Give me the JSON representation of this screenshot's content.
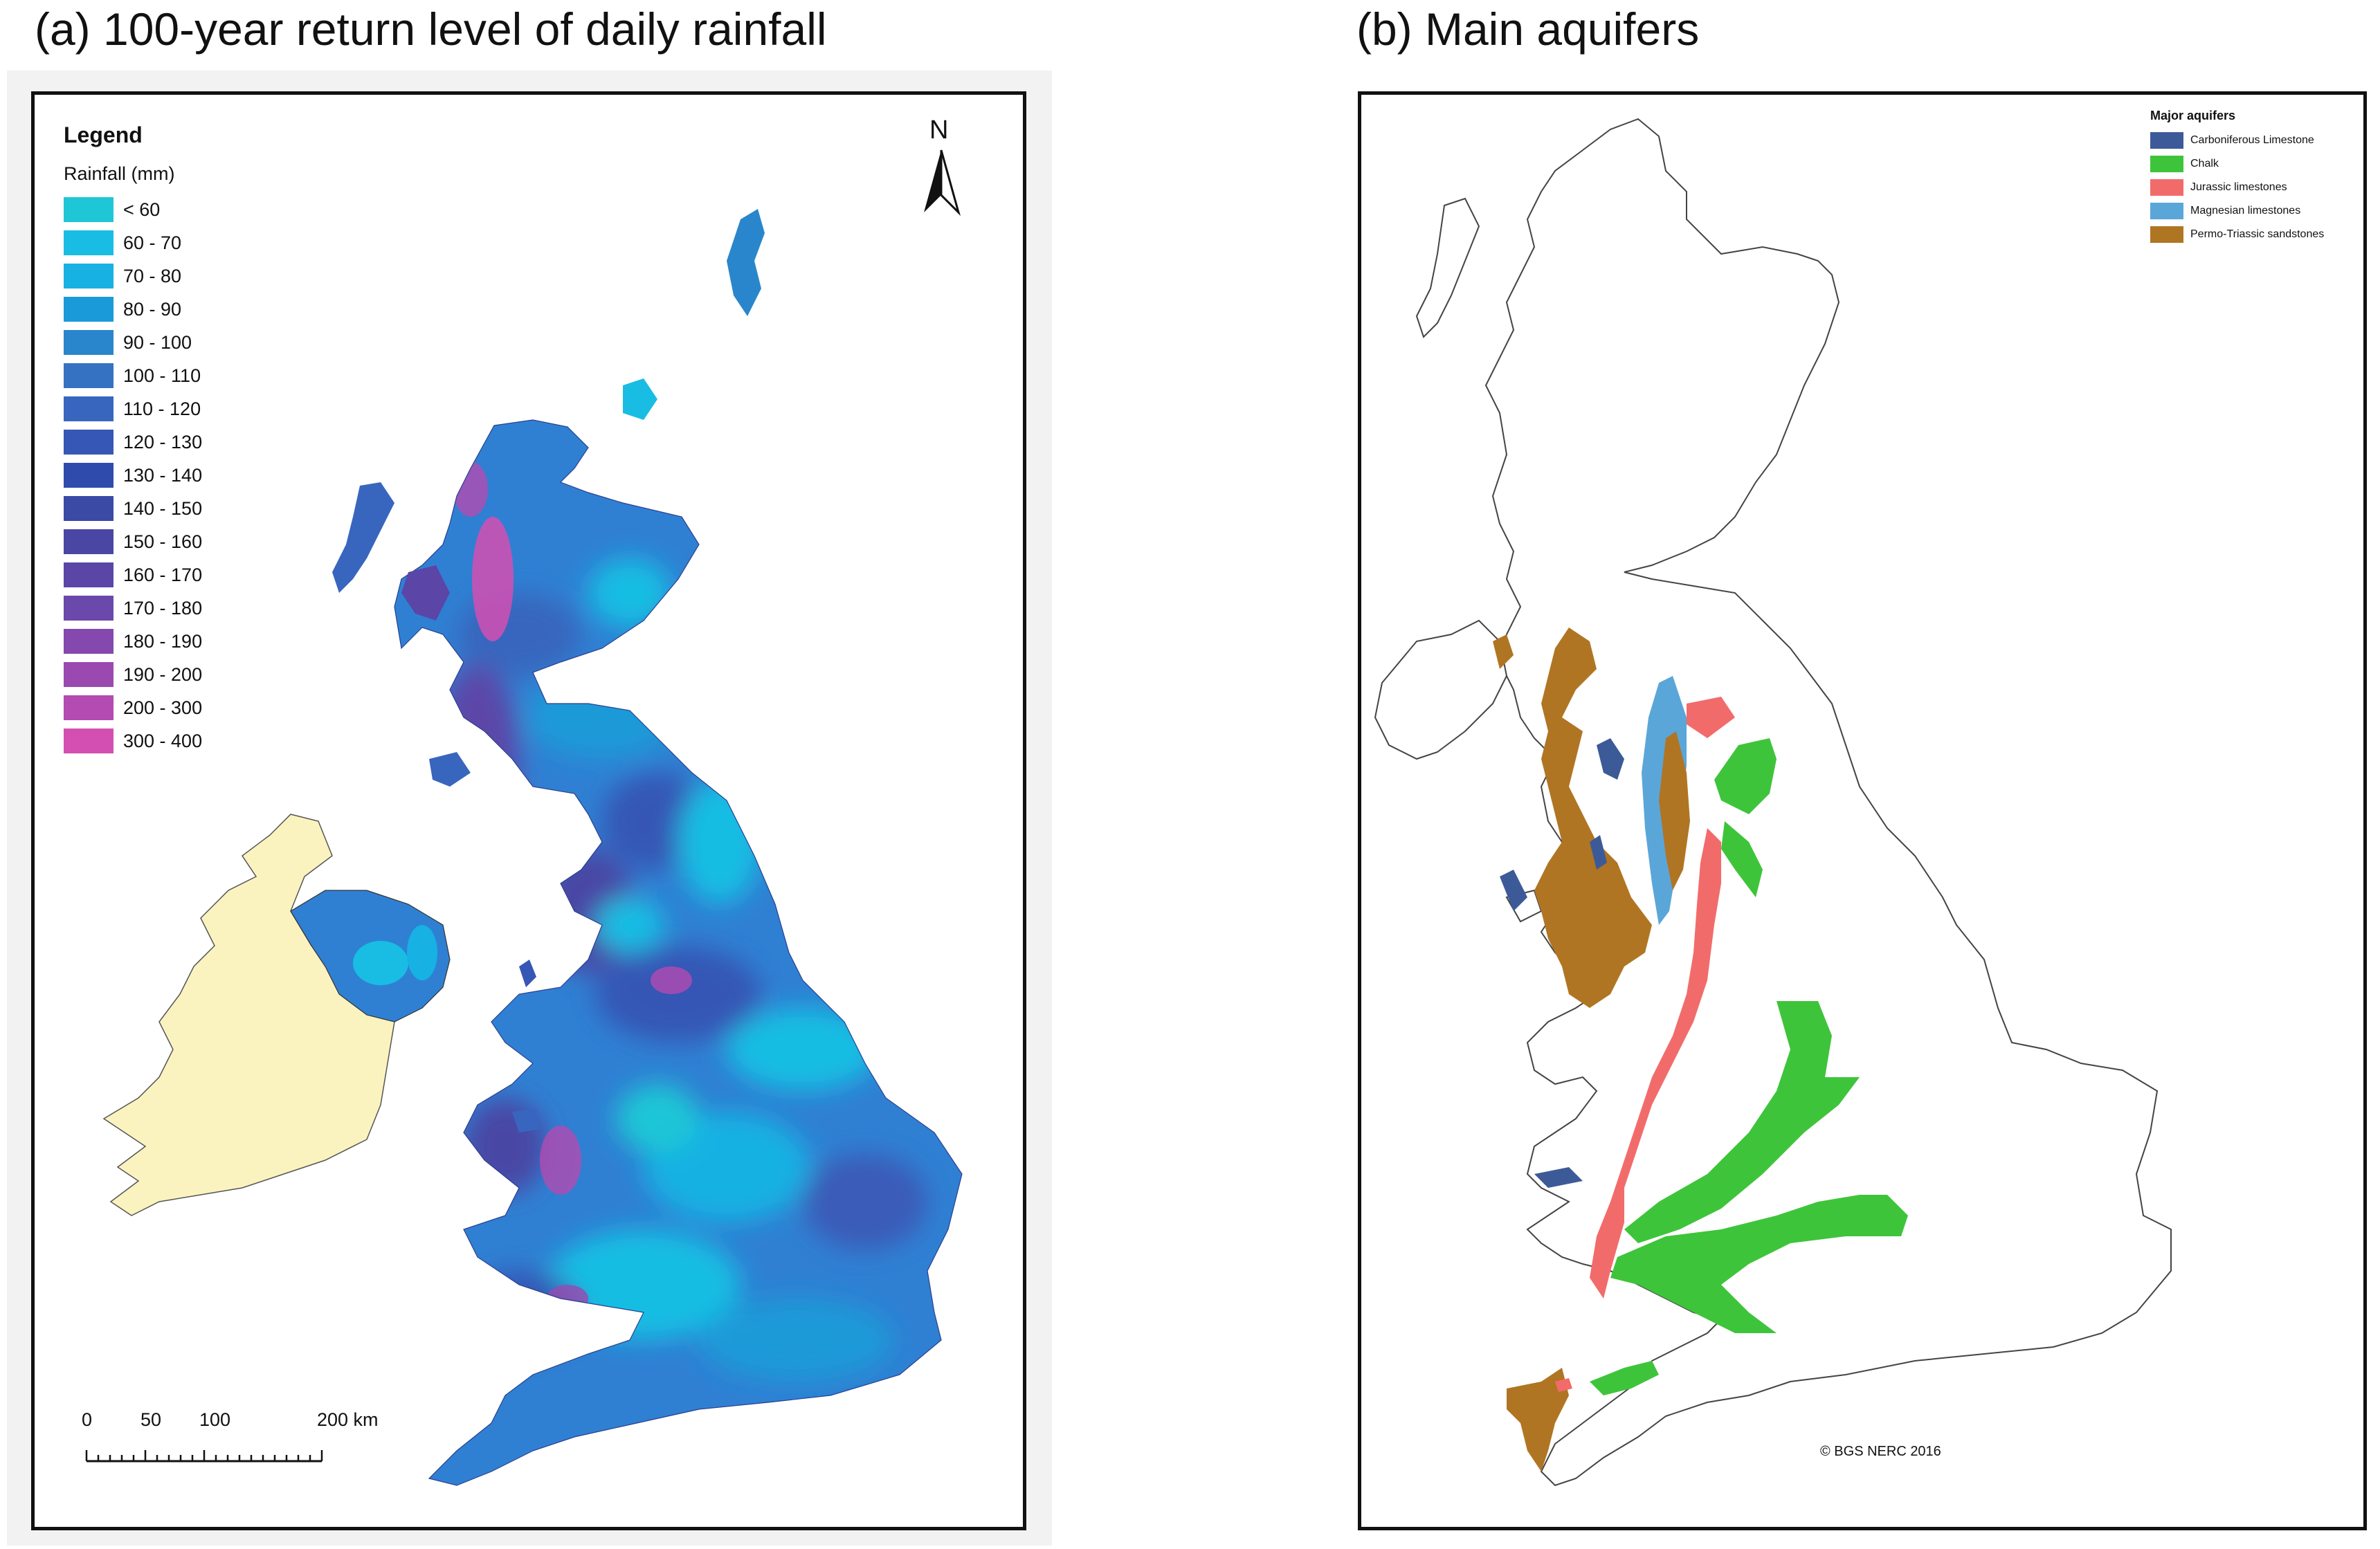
{
  "panel_a": {
    "title": "(a) 100-year return level of daily rainfall",
    "legend_title": "Legend",
    "legend_subtitle": "Rainfall (mm)",
    "legend_items": [
      {
        "label": "< 60",
        "color": "#1fc6d6"
      },
      {
        "label": "60 - 70",
        "color": "#19bde3"
      },
      {
        "label": "70 - 80",
        "color": "#17b1e3"
      },
      {
        "label": "80 - 90",
        "color": "#1a9ad8"
      },
      {
        "label": "90 - 100",
        "color": "#2a86cc"
      },
      {
        "label": "100 - 110",
        "color": "#3572c2"
      },
      {
        "label": "110 - 120",
        "color": "#3866be"
      },
      {
        "label": "120 - 130",
        "color": "#3657b5"
      },
      {
        "label": "130 - 140",
        "color": "#2f4bac"
      },
      {
        "label": "140 - 150",
        "color": "#3a4aa5"
      },
      {
        "label": "150 - 160",
        "color": "#4a46a4"
      },
      {
        "label": "160 - 170",
        "color": "#5b46a8"
      },
      {
        "label": "170 - 180",
        "color": "#6b48ac"
      },
      {
        "label": "180 - 190",
        "color": "#8548ae"
      },
      {
        "label": "190 - 200",
        "color": "#9a49b0"
      },
      {
        "label": "200 - 300",
        "color": "#b34bb2"
      },
      {
        "label": "300 - 400",
        "color": "#d44fb2"
      }
    ],
    "north_label": "N",
    "scale_labels": [
      "0",
      "50",
      "100",
      "200 km"
    ],
    "scale_values_km": [
      0,
      50,
      100,
      200
    ],
    "ireland_color": "#fbf3bf",
    "uk_base_color": "#2f80d3"
  },
  "panel_b": {
    "title": "(b) Main aquifers",
    "legend_title": "Major aquifers",
    "legend_items": [
      {
        "label": "Carboniferous Limestone",
        "color": "#3d5a98"
      },
      {
        "label": "Chalk",
        "color": "#3ec43a"
      },
      {
        "label": "Jurassic limestones",
        "color": "#f26b6b"
      },
      {
        "label": "Magnesian limestones",
        "color": "#5aa6d9"
      },
      {
        "label": "Permo-Triassic sandstones",
        "color": "#b07523"
      }
    ],
    "credit": "© BGS NERC 2016"
  }
}
